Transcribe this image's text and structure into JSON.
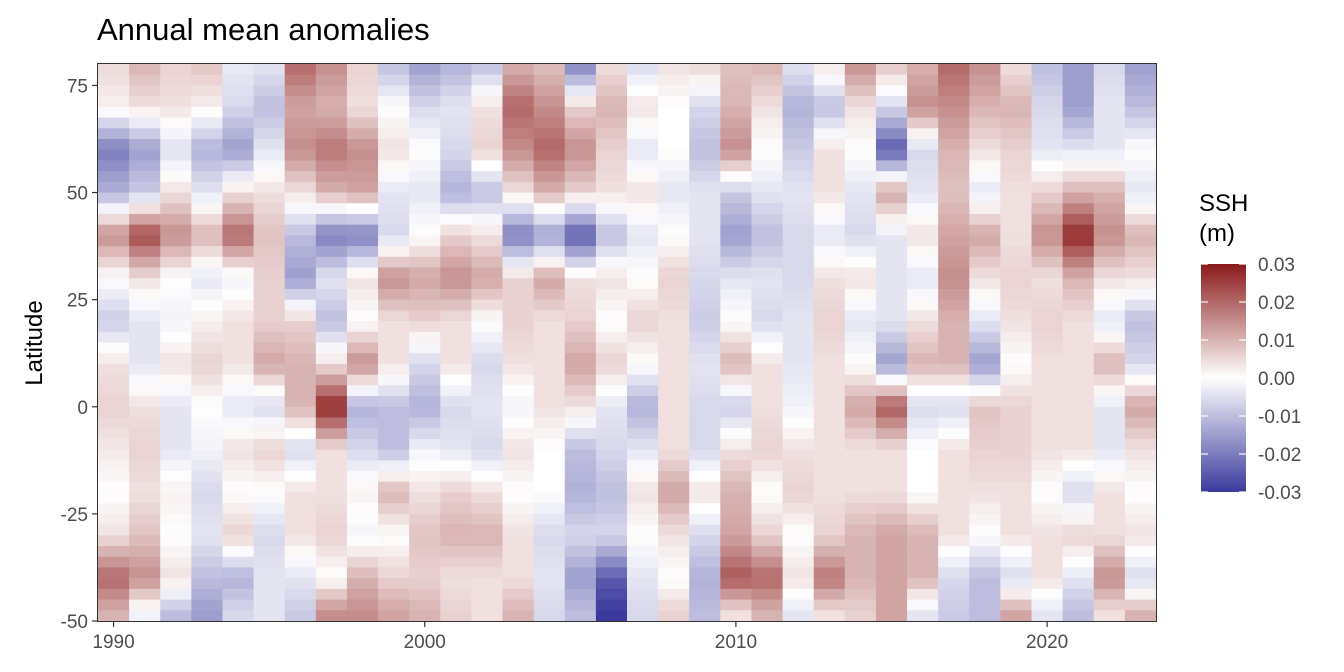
{
  "chart_data": {
    "type": "heatmap",
    "title": "Annual mean anomalies",
    "xlabel": "",
    "ylabel": "Latitude",
    "x_range": [
      1990,
      2023
    ],
    "y_range": [
      -50,
      80
    ],
    "x_ticks": [
      1990,
      2000,
      2010,
      2020
    ],
    "x_tick_labels": [
      "1990",
      "2000",
      "2010",
      "2020"
    ],
    "y_ticks": [
      75,
      50,
      25,
      0,
      -25,
      -50
    ],
    "y_tick_labels": [
      "75",
      "50",
      "25",
      "0",
      "-25",
      "-50"
    ],
    "legend": {
      "title_line1": "SSH",
      "title_line2": "(m)",
      "placement": "right",
      "range": [
        -0.03,
        0.03
      ],
      "ticks": [
        0.03,
        0.02,
        0.01,
        0.0,
        -0.01,
        -0.02,
        -0.03
      ],
      "tick_labels": [
        "0.03",
        "0.02",
        "0.01",
        "0.00",
        "-0.01",
        "-0.02",
        "-0.03"
      ]
    },
    "colors": {
      "low": "#3b3a9c",
      "mid": "#ffffff",
      "high": "#8b1a1a"
    },
    "grid": false,
    "years": [
      1990,
      1991,
      1992,
      1993,
      1994,
      1995,
      1996,
      1997,
      1998,
      1999,
      2000,
      2001,
      2002,
      2003,
      2004,
      2005,
      2006,
      2007,
      2008,
      2009,
      2010,
      2011,
      2012,
      2013,
      2014,
      2015,
      2016,
      2017,
      2018,
      2019,
      2020,
      2021,
      2022,
      2023
    ],
    "lat_nodes": [
      80,
      70,
      60,
      50,
      40,
      30,
      20,
      10,
      0,
      -10,
      -20,
      -30,
      -40,
      -48
    ],
    "values_m": [
      [
        0.005,
        0.002,
        -0.02,
        -0.012,
        0.015,
        0.0,
        -0.008,
        0.004,
        0.006,
        0.003,
        0.0,
        0.004,
        0.02,
        0.01
      ],
      [
        0.01,
        0.004,
        -0.015,
        -0.008,
        0.024,
        0.004,
        -0.004,
        -0.004,
        0.004,
        0.006,
        0.004,
        0.008,
        0.015,
        -0.002
      ],
      [
        0.006,
        0.004,
        -0.005,
        0.004,
        0.015,
        0.0,
        -0.002,
        0.004,
        -0.004,
        -0.004,
        0.002,
        0.0,
        0.004,
        -0.01
      ],
      [
        0.008,
        0.002,
        -0.012,
        -0.004,
        0.01,
        -0.004,
        0.002,
        0.006,
        0.0,
        -0.002,
        -0.006,
        -0.004,
        -0.01,
        -0.015
      ],
      [
        -0.003,
        -0.006,
        -0.015,
        0.004,
        0.02,
        -0.002,
        0.004,
        0.004,
        -0.004,
        0.004,
        0.0,
        0.006,
        -0.012,
        -0.006
      ],
      [
        -0.004,
        -0.01,
        -0.004,
        0.004,
        0.008,
        0.006,
        0.006,
        0.012,
        -0.006,
        0.006,
        0.0,
        -0.006,
        -0.004,
        -0.004
      ],
      [
        0.02,
        0.012,
        0.015,
        0.004,
        -0.01,
        -0.015,
        0.006,
        0.01,
        0.01,
        -0.006,
        0.004,
        0.004,
        -0.004,
        -0.008
      ],
      [
        0.015,
        0.01,
        0.018,
        0.01,
        -0.02,
        -0.004,
        -0.01,
        0.004,
        0.028,
        0.004,
        0.004,
        0.006,
        0.0,
        0.015
      ],
      [
        0.006,
        0.004,
        0.015,
        0.012,
        -0.02,
        0.004,
        0.0,
        0.015,
        -0.012,
        -0.006,
        0.002,
        -0.002,
        0.01,
        0.015
      ],
      [
        -0.01,
        0.0,
        0.004,
        -0.004,
        -0.006,
        0.015,
        0.004,
        0.004,
        -0.01,
        -0.01,
        0.01,
        0.0,
        0.006,
        0.012
      ],
      [
        -0.015,
        -0.006,
        0.0,
        -0.004,
        0.0,
        0.012,
        0.006,
        -0.006,
        -0.012,
        -0.002,
        0.004,
        0.008,
        0.006,
        0.01
      ],
      [
        -0.012,
        -0.004,
        -0.006,
        -0.012,
        0.006,
        0.015,
        0.004,
        0.004,
        -0.006,
        -0.004,
        0.006,
        0.01,
        0.004,
        0.006
      ],
      [
        -0.01,
        0.004,
        0.006,
        -0.01,
        0.004,
        0.012,
        0.0,
        -0.006,
        -0.004,
        -0.006,
        0.004,
        0.01,
        0.004,
        0.004
      ],
      [
        0.01,
        0.02,
        0.015,
        0.004,
        -0.02,
        0.006,
        0.006,
        0.004,
        -0.002,
        0.004,
        0.0,
        0.004,
        0.004,
        0.01
      ],
      [
        0.008,
        0.015,
        0.02,
        0.01,
        -0.015,
        0.012,
        0.004,
        0.004,
        0.004,
        0.0,
        0.0,
        -0.006,
        -0.004,
        -0.006
      ],
      [
        -0.02,
        0.006,
        0.015,
        0.006,
        -0.025,
        0.004,
        0.006,
        0.012,
        0.004,
        -0.01,
        -0.012,
        -0.006,
        -0.015,
        -0.01
      ],
      [
        0.004,
        0.01,
        0.006,
        0.004,
        -0.01,
        0.004,
        0.0,
        0.006,
        -0.004,
        -0.006,
        -0.01,
        -0.006,
        -0.025,
        -0.03
      ],
      [
        -0.006,
        0.004,
        -0.004,
        0.004,
        -0.004,
        0.0,
        0.006,
        0.0,
        -0.012,
        -0.004,
        0.004,
        0.0,
        -0.004,
        -0.006
      ],
      [
        0.004,
        0.0,
        0.0,
        -0.004,
        0.0,
        0.006,
        0.004,
        0.004,
        0.004,
        0.004,
        0.012,
        0.004,
        0.0,
        0.006
      ],
      [
        0.006,
        -0.006,
        -0.01,
        -0.004,
        -0.004,
        -0.006,
        -0.008,
        -0.004,
        -0.006,
        -0.006,
        0.004,
        -0.006,
        -0.012,
        -0.01
      ],
      [
        0.008,
        0.01,
        0.015,
        -0.008,
        -0.015,
        -0.004,
        0.0,
        0.01,
        -0.008,
        0.004,
        0.01,
        0.012,
        0.022,
        0.004
      ],
      [
        0.01,
        0.004,
        0.0,
        -0.004,
        -0.01,
        -0.004,
        -0.006,
        0.004,
        0.004,
        0.006,
        0.0,
        0.006,
        0.02,
        0.01
      ],
      [
        -0.004,
        -0.012,
        -0.008,
        -0.004,
        -0.006,
        -0.006,
        -0.004,
        -0.004,
        -0.002,
        0.004,
        0.006,
        0.0,
        0.004,
        -0.004
      ],
      [
        0.004,
        -0.01,
        0.004,
        0.004,
        -0.004,
        0.004,
        0.006,
        0.004,
        0.004,
        0.004,
        0.004,
        0.006,
        0.018,
        0.004
      ],
      [
        0.015,
        0.004,
        0.0,
        -0.004,
        -0.006,
        0.004,
        -0.004,
        0.0,
        0.012,
        0.004,
        0.004,
        0.01,
        0.01,
        0.006
      ],
      [
        0.008,
        -0.006,
        -0.025,
        0.012,
        -0.004,
        -0.004,
        -0.004,
        -0.015,
        0.022,
        0.004,
        0.004,
        0.012,
        0.012,
        0.012
      ],
      [
        0.01,
        0.015,
        -0.006,
        -0.004,
        0.004,
        -0.004,
        0.004,
        0.01,
        -0.006,
        0.0,
        0.0,
        0.01,
        0.01,
        -0.004
      ],
      [
        0.02,
        0.015,
        0.01,
        0.008,
        0.012,
        0.015,
        0.01,
        0.01,
        -0.006,
        0.004,
        0.004,
        0.004,
        -0.006,
        -0.008
      ],
      [
        0.015,
        0.01,
        0.004,
        -0.004,
        0.012,
        0.004,
        -0.004,
        -0.015,
        0.008,
        0.006,
        0.004,
        0.0,
        -0.01,
        -0.01
      ],
      [
        0.004,
        0.01,
        0.006,
        0.004,
        0.004,
        0.006,
        0.004,
        0.0,
        0.006,
        0.006,
        0.004,
        0.004,
        -0.006,
        0.012
      ],
      [
        -0.01,
        -0.006,
        -0.004,
        0.006,
        0.015,
        0.004,
        0.006,
        0.004,
        0.004,
        0.004,
        0.0,
        0.004,
        0.004,
        -0.004
      ],
      [
        -0.015,
        -0.015,
        -0.004,
        0.01,
        0.028,
        0.01,
        0.004,
        0.004,
        0.004,
        0.004,
        -0.006,
        0.006,
        -0.004,
        -0.01
      ],
      [
        -0.006,
        -0.004,
        -0.004,
        0.01,
        0.015,
        0.004,
        -0.004,
        0.01,
        -0.004,
        -0.004,
        0.004,
        0.004,
        0.015,
        0.004
      ],
      [
        -0.015,
        -0.01,
        0.0,
        -0.004,
        0.01,
        0.004,
        -0.01,
        -0.006,
        0.012,
        0.004,
        0.0,
        0.004,
        -0.006,
        0.01
      ]
    ]
  }
}
